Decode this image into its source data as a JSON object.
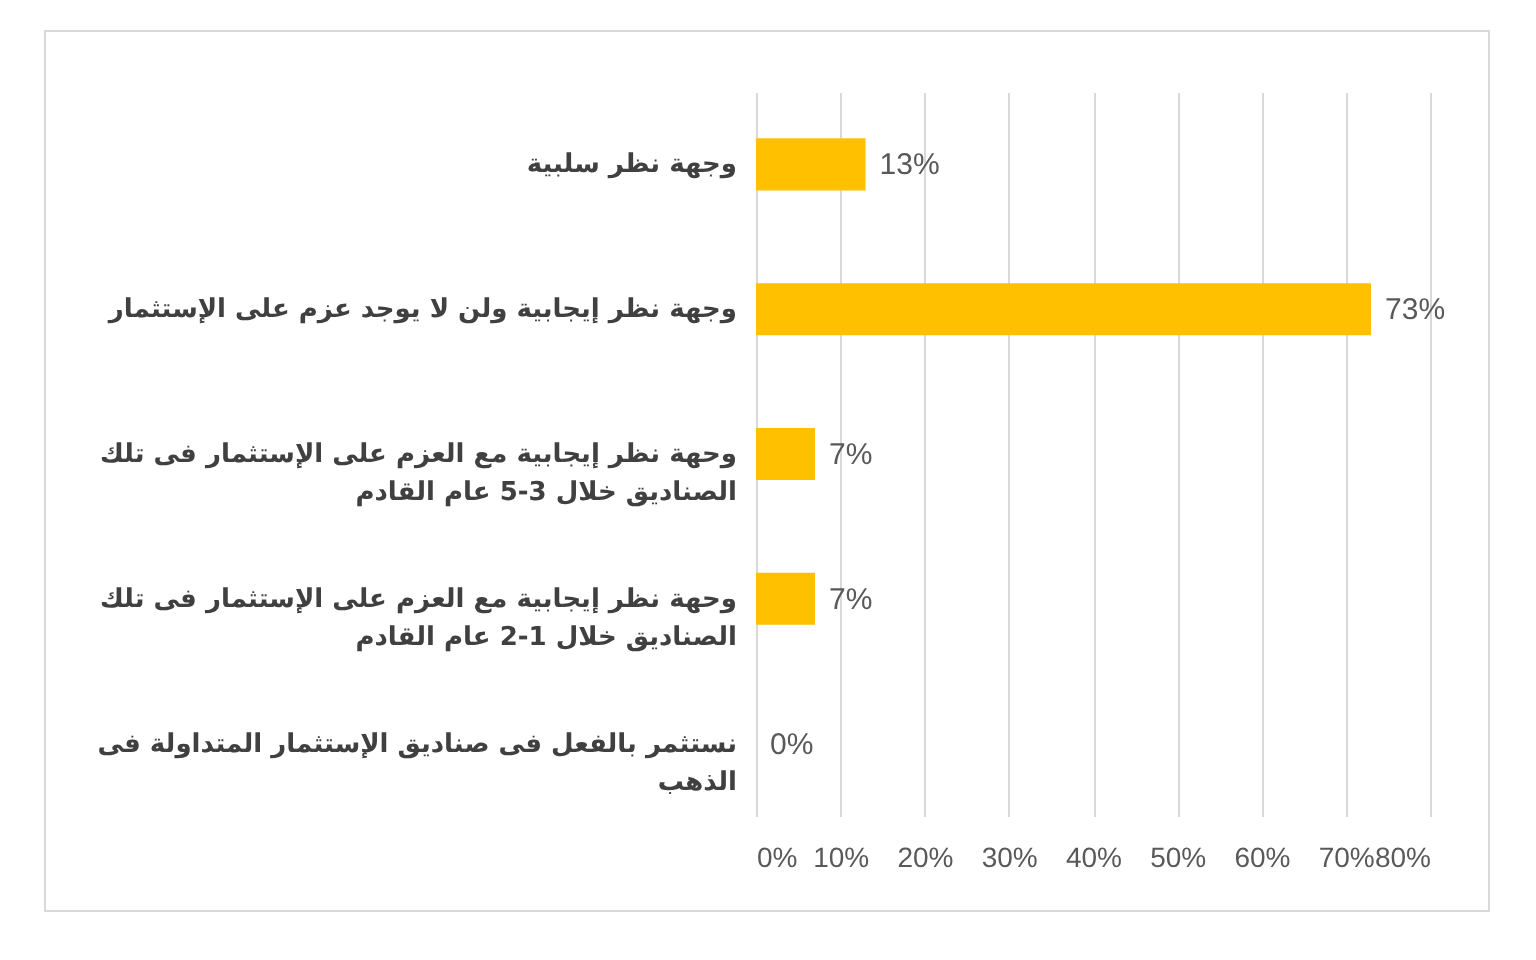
{
  "chart_data": {
    "type": "bar",
    "orientation": "horizontal",
    "categories": [
      "وجهة نظر سلبية",
      "وجهة نظر إيجابية ولن لا يوجد عزم على الإستثمار",
      "وحهة نظر إيجابية مع العزم على الإستثمار فى تلك\nالصناديق خلال 3-5 عام القادم",
      "وحهة نظر إيجابية مع العزم على الإستثمار فى تلك\nالصناديق خلال 1-2 عام القادم",
      "نستثمر بالفعل فى صناديق الإستثمار المتداولة فى\nالذهب"
    ],
    "values": [
      13,
      73,
      7,
      7,
      0
    ],
    "color": "#ffc000",
    "value_labels": [
      "13%",
      "73%",
      "7%",
      "7%",
      "0%"
    ],
    "xlim": [
      0,
      80
    ],
    "xticks": [
      {
        "value": 0,
        "label": "0%"
      },
      {
        "value": 10,
        "label": "10%"
      },
      {
        "value": 20,
        "label": "20%"
      },
      {
        "value": 30,
        "label": "30%"
      },
      {
        "value": 40,
        "label": "40%"
      },
      {
        "value": 50,
        "label": "50%"
      },
      {
        "value": 60,
        "label": "60%"
      },
      {
        "value": 70,
        "label": "70%"
      },
      {
        "value": 80,
        "label": "80%"
      }
    ],
    "grid": "x"
  }
}
